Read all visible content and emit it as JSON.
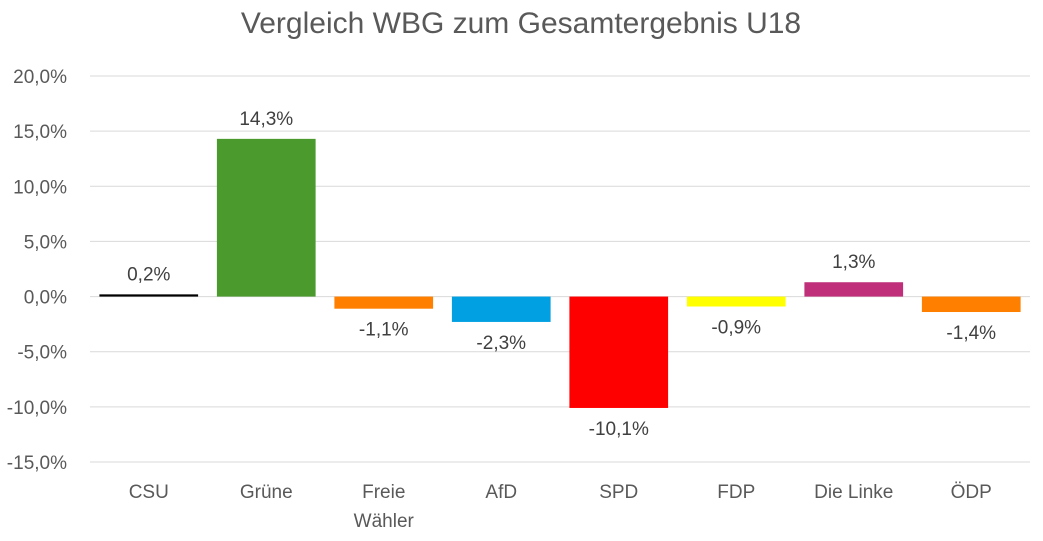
{
  "chart_data": {
    "type": "bar",
    "title": "Vergleich WBG zum Gesamtergebnis U18",
    "xlabel": "",
    "ylabel": "",
    "ylim": [
      -15,
      20
    ],
    "yticks": [
      20,
      15,
      10,
      5,
      0,
      -5,
      -10,
      -15
    ],
    "ytick_labels": [
      "20,0%",
      "15,0%",
      "10,0%",
      "5,0%",
      "0,0%",
      "-5,0%",
      "-10,0%",
      "-15,0%"
    ],
    "grid": true,
    "legend": "none",
    "categories": [
      "CSU",
      "Grüne",
      "Freie Wähler",
      "AfD",
      "SPD",
      "FDP",
      "Die Linke",
      "ÖDP"
    ],
    "category_lines": [
      [
        "CSU"
      ],
      [
        "Grüne"
      ],
      [
        "Freie",
        "Wähler"
      ],
      [
        "AfD"
      ],
      [
        "SPD"
      ],
      [
        "FDP"
      ],
      [
        "Die Linke"
      ],
      [
        "ÖDP"
      ]
    ],
    "values": [
      0.2,
      14.3,
      -1.1,
      -2.3,
      -10.1,
      -0.9,
      1.3,
      -1.4
    ],
    "data_labels": [
      "0,2%",
      "14,3%",
      "-1,1%",
      "-2,3%",
      "-10,1%",
      "-0,9%",
      "1,3%",
      "-1,4%"
    ],
    "colors": [
      "#000000",
      "#4a9a2e",
      "#ff7f00",
      "#00a0e3",
      "#ff0000",
      "#ffff00",
      "#c0307a",
      "#ff7f00"
    ]
  }
}
